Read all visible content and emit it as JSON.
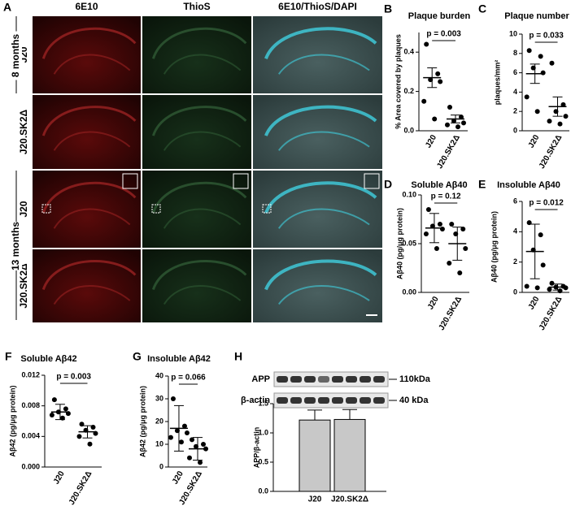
{
  "panel_a": {
    "letter": "A",
    "columns": [
      "6E10",
      "ThioS",
      "6E10/ThioS/DAPI"
    ],
    "rows": [
      "J20",
      "J20.SK2Δ",
      "J20",
      "J20.SK2Δ"
    ],
    "groups": [
      "8 months",
      "13 months"
    ]
  },
  "chart_data": [
    {
      "type": "dot",
      "letter": "B",
      "title": "Plaque burden",
      "ylabel": "% Area covered by plaques",
      "categories": [
        "J20",
        "J20.SK2Δ"
      ],
      "points": [
        [
          0.44,
          0.29,
          0.26,
          0.25,
          0.15,
          0.06
        ],
        [
          0.12,
          0.07,
          0.05,
          0.04,
          0.03,
          0.02
        ]
      ],
      "means": [
        0.27,
        0.06
      ],
      "errors": [
        0.05,
        0.02
      ],
      "annotation": "p = 0.003",
      "ylim": [
        0,
        0.5
      ],
      "yticks": [
        {
          "value": 0,
          "label": "0.0"
        },
        0.2,
        0.4
      ]
    },
    {
      "type": "dot",
      "letter": "C",
      "title": "Plaque number",
      "ylabel": "plaques/mm²",
      "categories": [
        "J20",
        "J20.SK2Δ"
      ],
      "points": [
        [
          8.3,
          7.7,
          6.5,
          6.0,
          3.5,
          2.0
        ],
        [
          7.0,
          2.7,
          2.0,
          1.5,
          1.0,
          0.7
        ]
      ],
      "means": [
        5.9,
        2.5
      ],
      "errors": [
        1.0,
        1.0
      ],
      "annotation": "p = 0.033",
      "ylim": [
        0,
        10
      ],
      "yticks": [
        0,
        2,
        4,
        6,
        8,
        10
      ]
    },
    {
      "type": "dot",
      "letter": "D",
      "title": "Soluble Aβ40",
      "ylabel": "Aβ40 (pg/μg protein)",
      "categories": [
        "J20",
        "J20.SK2Δ"
      ],
      "points": [
        [
          0.085,
          0.07,
          0.068,
          0.065,
          0.06,
          0.045
        ],
        [
          0.07,
          0.065,
          0.06,
          0.045,
          0.03,
          0.02
        ]
      ],
      "means": [
        0.066,
        0.05
      ],
      "errors": [
        0.015,
        0.017
      ],
      "annotation": "p = 0.12",
      "ylim": [
        0,
        0.1
      ],
      "yticks": [
        {
          "value": 0,
          "label": "0.00"
        },
        0.05,
        {
          "value": 0.1,
          "label": "0.10"
        }
      ]
    },
    {
      "type": "dot",
      "letter": "E",
      "title": "Insoluble Aβ40",
      "ylabel": "Aβ40 (pg/μg protein)",
      "categories": [
        "J20",
        "J20.SK2Δ"
      ],
      "points": [
        [
          4.6,
          3.8,
          2.8,
          1.8,
          0.4,
          0.3
        ],
        [
          0.6,
          0.4,
          0.35,
          0.3,
          0.2,
          0.1
        ]
      ],
      "means": [
        2.7,
        0.35
      ],
      "errors": [
        1.8,
        0.2
      ],
      "annotation": "p = 0.012",
      "ylim": [
        0,
        6
      ],
      "yticks": [
        0,
        2,
        4,
        6
      ]
    },
    {
      "type": "dot",
      "letter": "F",
      "title": "Soluble Aβ42",
      "ylabel": "Aβ42 (pg/μg protein)",
      "categories": [
        "J20",
        "J20.SK2Δ"
      ],
      "points": [
        [
          0.0088,
          0.0076,
          0.0072,
          0.007,
          0.0068,
          0.0064
        ],
        [
          0.0056,
          0.0052,
          0.0048,
          0.0044,
          0.004,
          0.003
        ]
      ],
      "means": [
        0.0072,
        0.0046
      ],
      "errors": [
        0.001,
        0.0008
      ],
      "annotation": "p = 0.003",
      "ylim": [
        0,
        0.012
      ],
      "yticks": [
        {
          "value": 0,
          "label": "0.000"
        },
        0.004,
        0.008,
        0.012
      ]
    },
    {
      "type": "dot",
      "letter": "G",
      "title": "Insoluble Aβ42",
      "ylabel": "Aβ42 (pg/μg protein)",
      "categories": [
        "J20",
        "J20.SK2Δ"
      ],
      "points": [
        [
          30,
          18,
          16,
          15,
          13,
          11
        ],
        [
          12,
          10,
          9,
          8,
          4,
          2
        ]
      ],
      "means": [
        17,
        8
      ],
      "errors": [
        10,
        5
      ],
      "annotation": "p = 0.066",
      "ylim": [
        0,
        40
      ],
      "yticks": [
        0,
        10,
        20,
        30,
        40
      ]
    },
    {
      "type": "bar",
      "letter": "H",
      "ylabel": "APP/β-actin",
      "categories": [
        "J20",
        "J20.SK2Δ"
      ],
      "values": [
        1.22,
        1.23
      ],
      "errors": [
        0.17,
        0.17
      ],
      "color": "#c8c8c8",
      "blot": {
        "bands": [
          "APP",
          "β-actin"
        ],
        "sizes": [
          "110kDa",
          "40 kDa"
        ]
      },
      "ylim": [
        0,
        1.5
      ],
      "yticks": [
        {
          "value": 0,
          "label": "0.0"
        },
        0.5,
        {
          "value": 1,
          "label": "1.0"
        },
        1.5
      ]
    }
  ]
}
